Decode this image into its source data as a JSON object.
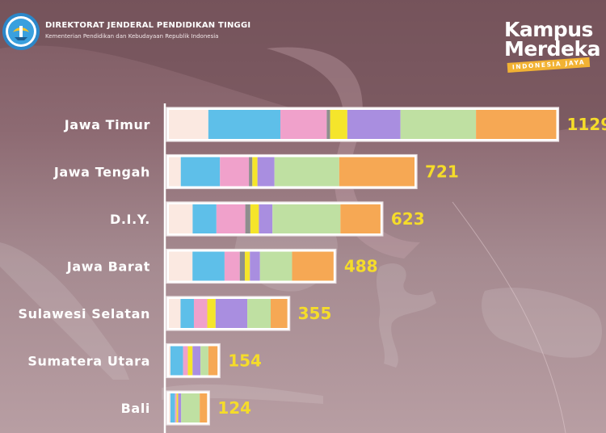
{
  "header": {
    "org_title": "DIREKTORAT JENDERAL PENDIDIKAN TINGGI",
    "org_subtitle": "Kementerian Pendidikan dan Kebudayaan Republik Indonesia",
    "campaign_line1": "Kampus",
    "campaign_line2": "Merdeka",
    "campaign_tagline": "INDONESIA JAYA"
  },
  "colors": {
    "segment_colors": [
      "#fbe9e1",
      "#5ebfe9",
      "#f0a1cb",
      "#8e8e8e",
      "#f5e52b",
      "#a98ee0",
      "#bfe0a2",
      "#f6a854"
    ],
    "bar_fill": "#ffffff",
    "value_text": "#f5dc2a",
    "label_text": "#ffffff"
  },
  "chart_data": {
    "type": "bar",
    "orientation": "horizontal",
    "stacked": true,
    "categories": [
      "Jawa Timur",
      "Jawa Tengah",
      "D.I.Y.",
      "Jawa Barat",
      "Sulawesi Selatan",
      "Sumatera Utara",
      "Bali"
    ],
    "values": [
      1129,
      721,
      623,
      488,
      355,
      154,
      124
    ],
    "series": [
      {
        "color": "#fbe9e1",
        "values": [
          115,
          35,
          70,
          70,
          35,
          5,
          5
        ]
      },
      {
        "color": "#5ebfe9",
        "values": [
          210,
          115,
          70,
          95,
          40,
          40,
          15
        ]
      },
      {
        "color": "#f0a1cb",
        "values": [
          135,
          85,
          85,
          45,
          40,
          15,
          5
        ]
      },
      {
        "color": "#8e8e8e",
        "values": [
          10,
          10,
          15,
          15,
          0,
          0,
          0
        ]
      },
      {
        "color": "#f5e52b",
        "values": [
          50,
          15,
          25,
          15,
          25,
          15,
          5
        ]
      },
      {
        "color": "#a98ee0",
        "values": [
          155,
          50,
          40,
          30,
          95,
          25,
          10
        ]
      },
      {
        "color": "#bfe0a2",
        "values": [
          220,
          190,
          200,
          95,
          70,
          25,
          60
        ]
      },
      {
        "color": "#f6a854",
        "values": [
          234,
          221,
          118,
          123,
          50,
          29,
          24
        ]
      }
    ],
    "title": "",
    "xlabel": "",
    "ylabel": "",
    "grid": false,
    "legend": "none"
  }
}
